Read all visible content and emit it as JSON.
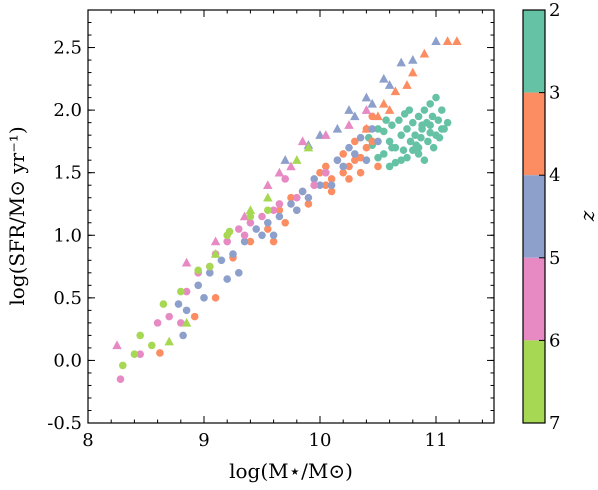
{
  "chart_data": {
    "type": "scatter",
    "xlabel": "log(M⋆/M⊙)",
    "ylabel": "log(SFR/M⊙ yr⁻¹)",
    "xlim": [
      8.0,
      11.5
    ],
    "ylim": [
      -0.5,
      2.8
    ],
    "x_ticks": [
      "8",
      "9",
      "10",
      "11"
    ],
    "x_tick_values": [
      8,
      9,
      10,
      11
    ],
    "y_ticks": [
      "-0.5",
      "0.0",
      "0.5",
      "1.0",
      "1.5",
      "2.0",
      "2.5"
    ],
    "y_tick_values": [
      -0.5,
      0.0,
      0.5,
      1.0,
      1.5,
      2.0,
      2.5
    ],
    "legend": "none",
    "grid": false,
    "colorbar": {
      "label": "z",
      "ticks": [
        "2",
        "3",
        "4",
        "5",
        "6",
        "7"
      ],
      "bins": [
        {
          "from": 2,
          "to": 3,
          "color": "#66c2a5"
        },
        {
          "from": 3,
          "to": 4,
          "color": "#fc8d62"
        },
        {
          "from": 4,
          "to": 5,
          "color": "#8da0cb"
        },
        {
          "from": 5,
          "to": 6,
          "color": "#e78ac3"
        },
        {
          "from": 6,
          "to": 7,
          "color": "#a6d854"
        }
      ]
    },
    "marker_types": [
      "circle",
      "triangle"
    ],
    "series": [
      {
        "z_bin": "2-3",
        "color": "#66c2a5",
        "marker": "circle",
        "points": [
          [
            10.55,
            1.65
          ],
          [
            10.6,
            1.75
          ],
          [
            10.65,
            1.7
          ],
          [
            10.7,
            1.8
          ],
          [
            10.72,
            1.68
          ],
          [
            10.75,
            1.85
          ],
          [
            10.78,
            1.75
          ],
          [
            10.8,
            1.9
          ],
          [
            10.82,
            1.8
          ],
          [
            10.85,
            1.95
          ],
          [
            10.88,
            1.85
          ],
          [
            10.9,
            2.0
          ],
          [
            10.92,
            1.9
          ],
          [
            10.95,
            2.05
          ],
          [
            10.97,
            1.95
          ],
          [
            11.0,
            2.1
          ],
          [
            11.02,
            1.92
          ],
          [
            11.05,
            2.0
          ],
          [
            11.07,
            1.85
          ],
          [
            11.1,
            1.9
          ],
          [
            10.5,
            1.62
          ],
          [
            10.45,
            1.72
          ],
          [
            10.55,
            1.83
          ],
          [
            10.62,
            1.88
          ],
          [
            10.68,
            1.92
          ],
          [
            10.73,
            1.97
          ],
          [
            10.77,
            2.0
          ],
          [
            10.83,
            1.72
          ],
          [
            10.87,
            1.78
          ],
          [
            10.9,
            1.6
          ],
          [
            10.95,
            1.82
          ],
          [
            11.0,
            1.8
          ],
          [
            10.7,
            1.6
          ],
          [
            10.65,
            1.58
          ],
          [
            10.8,
            1.68
          ],
          [
            10.85,
            1.65
          ],
          [
            10.93,
            1.75
          ],
          [
            10.98,
            1.7
          ],
          [
            11.03,
            1.78
          ],
          [
            10.6,
            1.55
          ],
          [
            10.4,
            1.6
          ],
          [
            10.42,
            1.78
          ],
          [
            10.5,
            1.85
          ],
          [
            10.57,
            1.92
          ],
          [
            10.75,
            1.62
          ],
          [
            10.85,
            1.7
          ],
          [
            10.88,
            1.88
          ],
          [
            10.95,
            1.88
          ],
          [
            11.05,
            1.85
          ],
          [
            10.62,
            1.7
          ]
        ]
      },
      {
        "z_bin": "3-4",
        "color": "#fc8d62",
        "marker": "circle",
        "points": [
          [
            8.62,
            0.06
          ],
          [
            8.92,
            0.35
          ],
          [
            9.1,
            0.5
          ],
          [
            9.25,
            0.82
          ],
          [
            9.4,
            0.95
          ],
          [
            9.55,
            1.05
          ],
          [
            9.65,
            1.2
          ],
          [
            9.75,
            1.3
          ],
          [
            9.85,
            1.35
          ],
          [
            9.95,
            1.4
          ],
          [
            10.05,
            1.4
          ],
          [
            10.1,
            1.45
          ],
          [
            10.2,
            1.5
          ],
          [
            10.25,
            1.55
          ],
          [
            10.3,
            1.6
          ],
          [
            10.35,
            1.62
          ],
          [
            10.4,
            1.7
          ],
          [
            10.45,
            1.75
          ],
          [
            10.5,
            1.55
          ],
          [
            10.15,
            1.6
          ],
          [
            10.0,
            1.5
          ],
          [
            9.9,
            1.25
          ],
          [
            10.2,
            1.65
          ],
          [
            10.3,
            1.75
          ],
          [
            10.05,
            1.55
          ],
          [
            10.25,
            1.45
          ],
          [
            9.7,
            1.1
          ],
          [
            9.8,
            1.2
          ],
          [
            10.1,
            1.35
          ],
          [
            10.4,
            1.85
          ],
          [
            10.45,
            1.95
          ],
          [
            10.35,
            1.5
          ],
          [
            9.6,
            0.95
          ]
        ]
      },
      {
        "z_bin": "3-4",
        "color": "#fc8d62",
        "marker": "triangle",
        "points": [
          [
            10.5,
            1.95
          ],
          [
            10.55,
            2.05
          ],
          [
            10.65,
            2.15
          ],
          [
            10.75,
            2.2
          ],
          [
            10.8,
            2.3
          ],
          [
            10.9,
            2.45
          ],
          [
            11.1,
            2.55
          ],
          [
            11.18,
            2.55
          ],
          [
            10.4,
            1.85
          ],
          [
            10.6,
            2.0
          ]
        ]
      },
      {
        "z_bin": "4-5",
        "color": "#8da0cb",
        "marker": "circle",
        "points": [
          [
            8.78,
            0.45
          ],
          [
            8.85,
            0.4
          ],
          [
            8.95,
            0.6
          ],
          [
            9.05,
            0.7
          ],
          [
            9.15,
            0.8
          ],
          [
            9.25,
            0.85
          ],
          [
            9.35,
            0.95
          ],
          [
            9.45,
            1.05
          ],
          [
            9.55,
            1.1
          ],
          [
            9.65,
            1.15
          ],
          [
            9.75,
            1.25
          ],
          [
            9.85,
            1.35
          ],
          [
            9.95,
            1.45
          ],
          [
            10.05,
            1.5
          ],
          [
            10.15,
            1.6
          ],
          [
            10.25,
            1.7
          ],
          [
            10.35,
            1.78
          ],
          [
            10.45,
            1.85
          ],
          [
            9.0,
            0.5
          ],
          [
            8.82,
            0.2
          ],
          [
            9.3,
            0.7
          ],
          [
            9.6,
            1.0
          ],
          [
            9.9,
            1.3
          ],
          [
            10.1,
            1.4
          ],
          [
            10.2,
            1.55
          ],
          [
            10.3,
            1.65
          ],
          [
            10.4,
            1.6
          ],
          [
            9.8,
            1.2
          ],
          [
            9.5,
            1.0
          ],
          [
            9.2,
            0.65
          ],
          [
            10.0,
            1.4
          ],
          [
            10.5,
            1.75
          ]
        ]
      },
      {
        "z_bin": "4-5",
        "color": "#8da0cb",
        "marker": "triangle",
        "points": [
          [
            9.7,
            1.6
          ],
          [
            9.9,
            1.72
          ],
          [
            10.0,
            1.8
          ],
          [
            10.15,
            1.85
          ],
          [
            10.3,
            1.95
          ],
          [
            10.45,
            2.05
          ],
          [
            10.6,
            2.2
          ],
          [
            10.8,
            2.4
          ],
          [
            11.0,
            2.55
          ],
          [
            10.25,
            2.0
          ],
          [
            10.4,
            2.1
          ],
          [
            10.55,
            2.25
          ],
          [
            10.7,
            2.38
          ]
        ]
      },
      {
        "z_bin": "5-6",
        "color": "#e78ac3",
        "marker": "circle",
        "points": [
          [
            8.28,
            -0.15
          ],
          [
            8.45,
            0.05
          ],
          [
            8.6,
            0.3
          ],
          [
            8.8,
            0.3
          ],
          [
            8.85,
            0.55
          ],
          [
            8.95,
            0.7
          ],
          [
            9.05,
            0.75
          ],
          [
            9.2,
            0.95
          ],
          [
            9.35,
            1.0
          ],
          [
            9.5,
            1.15
          ],
          [
            9.65,
            1.25
          ],
          [
            9.8,
            1.3
          ],
          [
            9.95,
            1.4
          ],
          [
            10.05,
            1.5
          ],
          [
            9.7,
            1.45
          ],
          [
            9.4,
            1.1
          ],
          [
            9.1,
            0.85
          ],
          [
            8.7,
            0.35
          ],
          [
            9.3,
            1.05
          ],
          [
            9.6,
            1.2
          ]
        ]
      },
      {
        "z_bin": "5-6",
        "color": "#e78ac3",
        "marker": "triangle",
        "points": [
          [
            8.25,
            0.12
          ],
          [
            8.85,
            0.78
          ],
          [
            9.1,
            0.95
          ],
          [
            9.35,
            1.15
          ],
          [
            9.55,
            1.4
          ],
          [
            9.75,
            1.55
          ],
          [
            9.85,
            1.75
          ],
          [
            10.05,
            1.8
          ],
          [
            10.25,
            1.88
          ],
          [
            10.4,
            2.0
          ],
          [
            9.65,
            1.5
          ]
        ]
      },
      {
        "z_bin": "6-7",
        "color": "#a6d854",
        "marker": "circle",
        "points": [
          [
            8.3,
            -0.04
          ],
          [
            8.4,
            0.05
          ],
          [
            8.45,
            0.2
          ],
          [
            8.55,
            0.12
          ],
          [
            8.65,
            0.45
          ],
          [
            8.8,
            0.55
          ],
          [
            8.95,
            0.72
          ],
          [
            9.05,
            0.75
          ],
          [
            9.2,
            1.0
          ],
          [
            9.22,
            1.03
          ],
          [
            9.4,
            1.15
          ],
          [
            9.55,
            1.2
          ]
        ]
      },
      {
        "z_bin": "6-7",
        "color": "#a6d854",
        "marker": "triangle",
        "points": [
          [
            8.7,
            0.15
          ],
          [
            8.85,
            0.3
          ],
          [
            9.1,
            0.85
          ],
          [
            9.4,
            1.2
          ],
          [
            9.55,
            1.3
          ],
          [
            9.8,
            1.6
          ],
          [
            9.9,
            1.7
          ]
        ]
      }
    ]
  }
}
